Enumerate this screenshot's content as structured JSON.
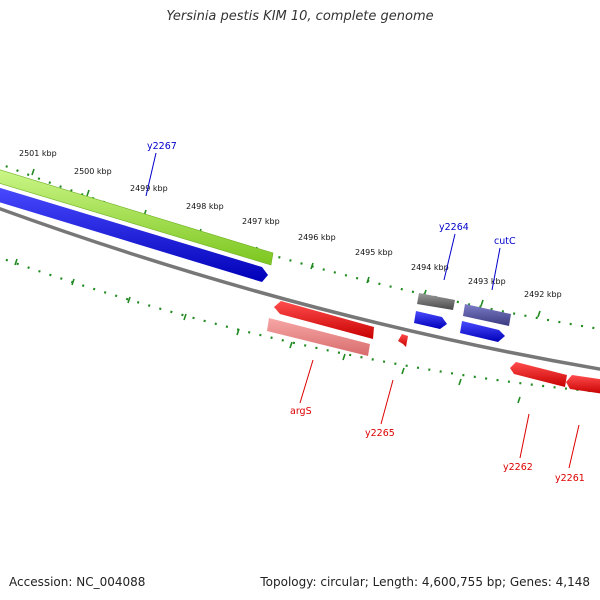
{
  "title": "Yersinia pestis KIM 10, complete genome",
  "accession_label": "Accession: NC_004088",
  "summary_label": "Topology: circular; Length: 4,600,755 bp; Genes: 4,148",
  "kbp_labels": [
    "2501 kbp",
    "2500 kbp",
    "2499 kbp",
    "2498 kbp",
    "2497 kbp",
    "2496 kbp",
    "2495 kbp",
    "2494 kbp",
    "2493 kbp",
    "2492 kbp"
  ],
  "forward_gene_labels": [
    "y2267",
    "y2264",
    "cutC"
  ],
  "reverse_gene_labels": [
    "argS",
    "y2265",
    "y2262",
    "y2261"
  ],
  "colors": {
    "backbone": "#808080",
    "forward_cds": "#0000ee",
    "reverse_cds": "#ee0000",
    "rna": "#99e030",
    "forward_label": "#0000cc",
    "reverse_label": "#dd0000",
    "tick": "#228b22"
  }
}
